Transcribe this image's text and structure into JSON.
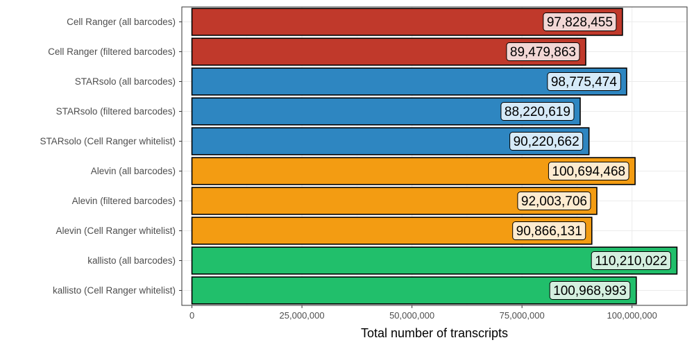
{
  "chart_data": {
    "type": "bar",
    "orientation": "horizontal",
    "categories": [
      "Cell Ranger (all barcodes)",
      "Cell Ranger (filtered barcodes)",
      "STARsolo (all barcodes)",
      "STARsolo (filtered barcodes)",
      "STARsolo (Cell Ranger whitelist)",
      "Alevin (all barcodes)",
      "Alevin (filtered barcodes)",
      "Alevin (Cell Ranger whitelist)",
      "kallisto (all barcodes)",
      "kallisto (Cell Ranger whitelist)"
    ],
    "values": [
      97828455,
      89479863,
      98775474,
      88220619,
      90220662,
      100694468,
      92003706,
      90866131,
      110210022,
      100968993
    ],
    "data_labels": [
      "97,828,455",
      "89,479,863",
      "98,775,474",
      "88,220,619",
      "90,220,662",
      "100,694,468",
      "92,003,706",
      "90,866,131",
      "110,210,022",
      "100,968,993"
    ],
    "colors": [
      "#c0392b",
      "#c0392b",
      "#2e86c1",
      "#2e86c1",
      "#2e86c1",
      "#f39c12",
      "#f39c12",
      "#f39c12",
      "#21bf6b",
      "#21bf6b"
    ],
    "label_fills": [
      "#f2d7d5",
      "#f2d7d5",
      "#d6eaf8",
      "#d6eaf8",
      "#d6eaf8",
      "#fdebd0",
      "#fdebd0",
      "#fdebd0",
      "#d4efdf",
      "#d4efdf"
    ],
    "xlabel": "Total number of transcripts",
    "ylabel": "",
    "title": "",
    "xlim": [
      0,
      110210022
    ],
    "x_ticks": [
      0,
      25000000,
      50000000,
      75000000,
      100000000
    ],
    "x_tick_labels": [
      "0",
      "25,000,000",
      "50,000,000",
      "75,000,000",
      "100,000,000"
    ],
    "grid": true
  }
}
